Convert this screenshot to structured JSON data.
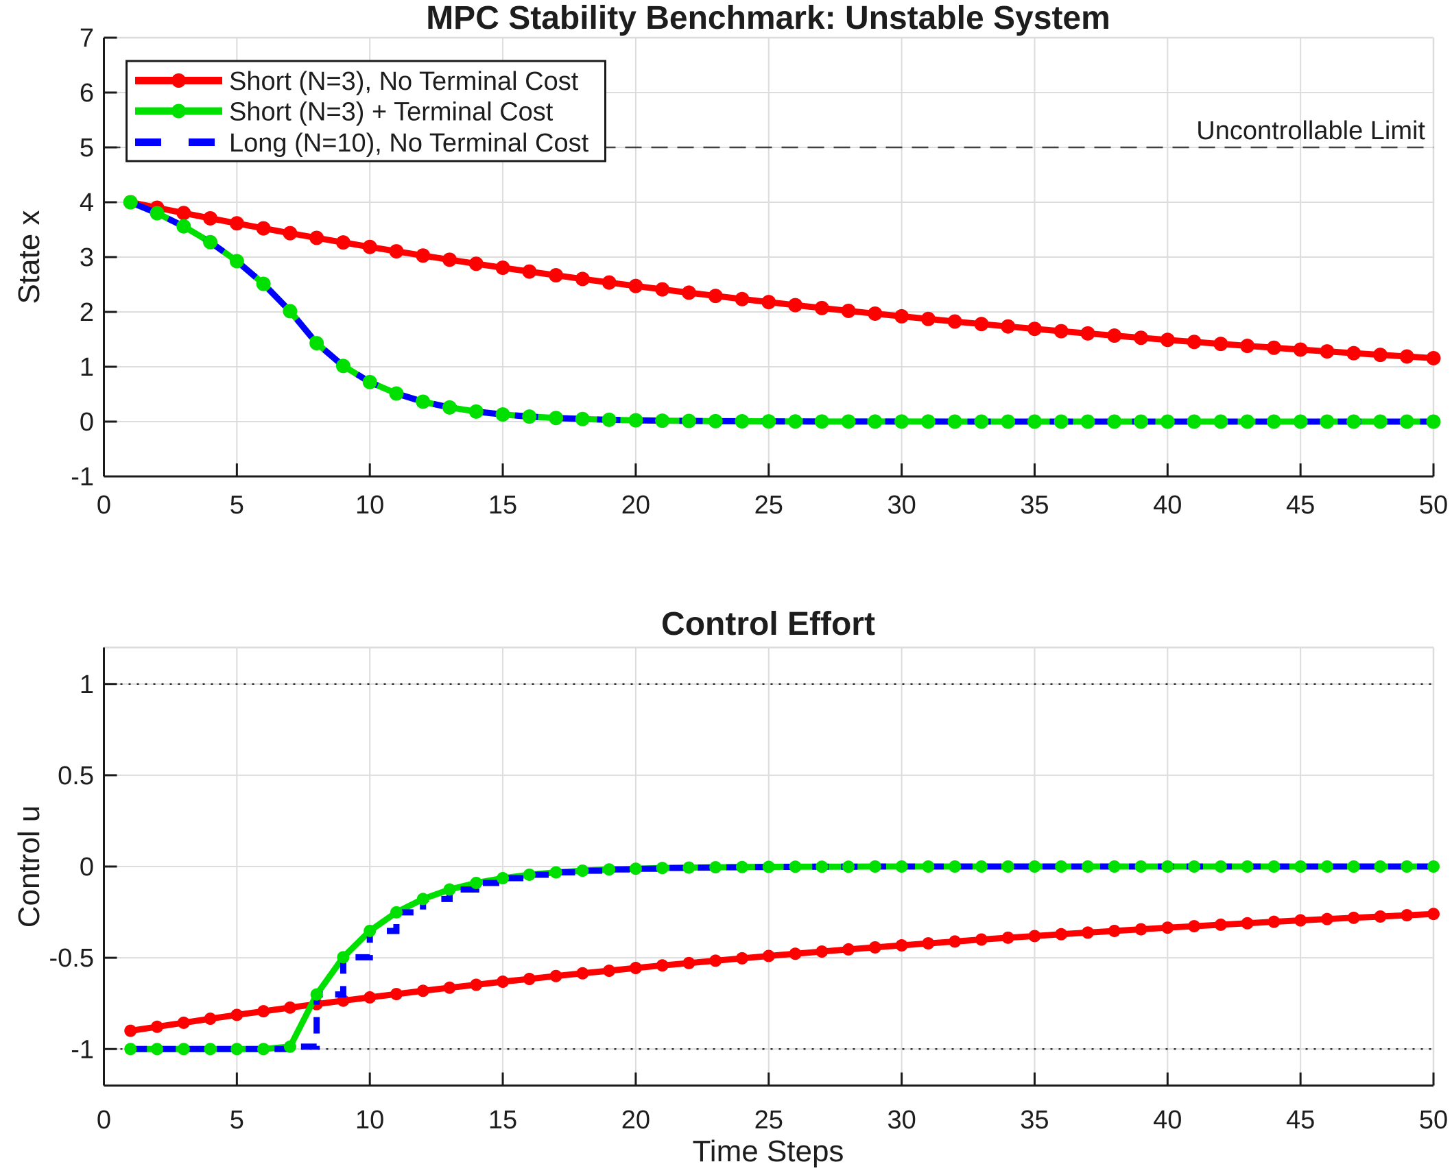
{
  "figure": {
    "background": "#ffffff",
    "grid_color": "#dcdcdc",
    "axis_color": "#1a1a1a",
    "text_color": "#1d1d1d"
  },
  "chart_data": [
    {
      "type": "line",
      "title": "MPC Stability Benchmark: Unstable System",
      "ylabel": "State x",
      "xlabel": "",
      "xlim": [
        0,
        50
      ],
      "ylim": [
        -1,
        7
      ],
      "xticks": [
        0,
        5,
        10,
        15,
        20,
        25,
        30,
        35,
        40,
        45,
        50
      ],
      "yticks": [
        -1,
        0,
        1,
        2,
        3,
        4,
        5,
        6,
        7
      ],
      "grid": true,
      "legend_position": "top-left",
      "x": [
        1,
        2,
        3,
        4,
        5,
        6,
        7,
        8,
        9,
        10,
        11,
        12,
        13,
        14,
        15,
        16,
        17,
        18,
        19,
        20,
        21,
        22,
        23,
        24,
        25,
        26,
        27,
        28,
        29,
        30,
        31,
        32,
        33,
        34,
        35,
        36,
        37,
        38,
        39,
        40,
        41,
        42,
        43,
        44,
        45,
        46,
        47,
        48,
        49,
        50
      ],
      "series": [
        {
          "name": "Short (N=3), No Terminal Cost",
          "color": "#ff0000",
          "style": "solid-markers",
          "values": [
            4.0,
            3.9,
            3.803,
            3.707,
            3.615,
            3.524,
            3.436,
            3.35,
            3.267,
            3.185,
            3.105,
            3.028,
            2.952,
            2.878,
            2.806,
            2.736,
            2.668,
            2.601,
            2.536,
            2.473,
            2.411,
            2.351,
            2.292,
            2.234,
            2.179,
            2.124,
            2.071,
            2.019,
            1.969,
            1.92,
            1.872,
            1.825,
            1.779,
            1.735,
            1.691,
            1.649,
            1.608,
            1.568,
            1.528,
            1.49,
            1.453,
            1.417,
            1.381,
            1.347,
            1.313,
            1.28,
            1.248,
            1.217,
            1.187,
            1.157
          ]
        },
        {
          "name": "Short (N=3) + Terminal Cost",
          "color": "#00e000",
          "style": "solid-markers",
          "values": [
            4.0,
            3.8,
            3.56,
            3.272,
            2.926,
            2.512,
            2.014,
            1.43,
            1.015,
            0.721,
            0.512,
            0.363,
            0.258,
            0.183,
            0.13,
            0.092,
            0.066,
            0.047,
            0.033,
            0.024,
            0.017,
            0.012,
            0.008,
            0.006,
            0.004,
            0.003,
            0.002,
            0.002,
            0.001,
            0.001,
            0.001,
            0,
            0,
            0,
            0,
            0,
            0,
            0,
            0,
            0,
            0,
            0,
            0,
            0,
            0,
            0,
            0,
            0,
            0,
            0
          ]
        },
        {
          "name": "Long (N=10), No Terminal Cost",
          "color": "#0000ff",
          "style": "dashed",
          "values": [
            4.0,
            3.8,
            3.56,
            3.272,
            2.926,
            2.512,
            2.014,
            1.43,
            1.015,
            0.721,
            0.512,
            0.363,
            0.258,
            0.183,
            0.13,
            0.092,
            0.066,
            0.047,
            0.033,
            0.024,
            0.017,
            0.012,
            0.008,
            0.006,
            0.004,
            0.003,
            0.002,
            0.002,
            0.001,
            0.001,
            0.001,
            0,
            0,
            0,
            0,
            0,
            0,
            0,
            0,
            0,
            0,
            0,
            0,
            0,
            0,
            0,
            0,
            0,
            0,
            0
          ]
        }
      ],
      "annotations": [
        {
          "type": "hline",
          "y": 5,
          "style": "dashed",
          "color": "#404040",
          "label": "Uncontrollable Limit"
        }
      ]
    },
    {
      "type": "line",
      "title": "Control Effort",
      "ylabel": "Control u",
      "xlabel": "Time Steps",
      "xlim": [
        0,
        50
      ],
      "ylim": [
        -1.2,
        1.2
      ],
      "xticks": [
        0,
        5,
        10,
        15,
        20,
        25,
        30,
        35,
        40,
        45,
        50
      ],
      "yticks": [
        -1,
        -0.5,
        0,
        0.5,
        1
      ],
      "grid": true,
      "legend_position": "none",
      "x": [
        1,
        2,
        3,
        4,
        5,
        6,
        7,
        8,
        9,
        10,
        11,
        12,
        13,
        14,
        15,
        16,
        17,
        18,
        19,
        20,
        21,
        22,
        23,
        24,
        25,
        26,
        27,
        28,
        29,
        30,
        31,
        32,
        33,
        34,
        35,
        36,
        37,
        38,
        39,
        40,
        41,
        42,
        43,
        44,
        45,
        46,
        47,
        48,
        49,
        50
      ],
      "series": [
        {
          "name": "Short (N=3), No Terminal Cost",
          "color": "#ff0000",
          "style": "solid-markers",
          "values": [
            -0.9,
            -0.878,
            -0.856,
            -0.834,
            -0.813,
            -0.793,
            -0.773,
            -0.754,
            -0.735,
            -0.717,
            -0.699,
            -0.681,
            -0.664,
            -0.648,
            -0.631,
            -0.616,
            -0.6,
            -0.585,
            -0.571,
            -0.556,
            -0.542,
            -0.529,
            -0.516,
            -0.503,
            -0.49,
            -0.478,
            -0.466,
            -0.454,
            -0.443,
            -0.432,
            -0.421,
            -0.411,
            -0.4,
            -0.39,
            -0.381,
            -0.371,
            -0.362,
            -0.353,
            -0.344,
            -0.335,
            -0.327,
            -0.319,
            -0.311,
            -0.303,
            -0.295,
            -0.288,
            -0.281,
            -0.274,
            -0.267,
            -0.26
          ]
        },
        {
          "name": "Short (N=3) + Terminal Cost",
          "color": "#00e000",
          "style": "solid-markers",
          "values": [
            -1,
            -1,
            -1,
            -1,
            -1,
            -1,
            -0.987,
            -0.701,
            -0.497,
            -0.353,
            -0.251,
            -0.178,
            -0.126,
            -0.09,
            -0.064,
            -0.045,
            -0.032,
            -0.023,
            -0.016,
            -0.012,
            -0.008,
            -0.006,
            -0.004,
            -0.003,
            -0.002,
            -0.001,
            -0.001,
            -0.001,
            0,
            0,
            0,
            0,
            0,
            0,
            0,
            0,
            0,
            0,
            0,
            0,
            0,
            0,
            0,
            0,
            0,
            0,
            0,
            0,
            0,
            0
          ]
        },
        {
          "name": "Long (N=10), No Terminal Cost",
          "color": "#0000ff",
          "style": "dashed-stairs",
          "values": [
            -1,
            -1,
            -1,
            -1,
            -1,
            -1,
            -0.987,
            -0.701,
            -0.497,
            -0.353,
            -0.251,
            -0.178,
            -0.126,
            -0.09,
            -0.064,
            -0.045,
            -0.032,
            -0.023,
            -0.016,
            -0.012,
            -0.008,
            -0.006,
            -0.004,
            -0.003,
            -0.002,
            -0.001,
            -0.001,
            -0.001,
            0,
            0,
            0,
            0,
            0,
            0,
            0,
            0,
            0,
            0,
            0,
            0,
            0,
            0,
            0,
            0,
            0,
            0,
            0,
            0,
            0,
            0
          ]
        }
      ],
      "annotations": [
        {
          "type": "hline",
          "y": 1,
          "style": "dotted",
          "color": "#333333",
          "label": ""
        },
        {
          "type": "hline",
          "y": -1,
          "style": "dotted",
          "color": "#333333",
          "label": ""
        }
      ]
    }
  ]
}
